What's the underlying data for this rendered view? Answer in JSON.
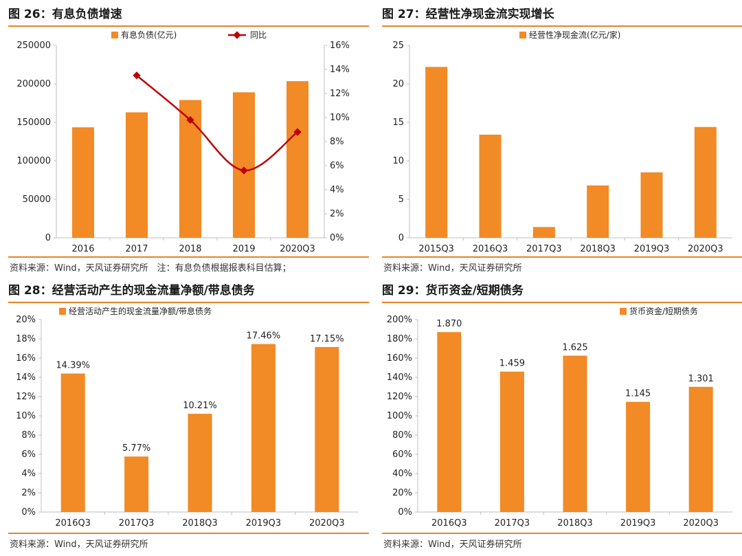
{
  "colors": {
    "bar": "#f28a25",
    "line": "#c00000",
    "rule": "#e8822a"
  },
  "panels": [
    {
      "title": "图 26：有息负债增速",
      "source": "资料来源：Wind，天风证券研究所　注：有息负债根据报表科目估算；"
    },
    {
      "title": "图 27：经营性净现金流实现增长",
      "source": "资料来源：Wind，天风证券研究所"
    },
    {
      "title": "图 28：经营活动产生的现金流量净额/带息债务",
      "source": "资料来源：Wind，天风证券研究所"
    },
    {
      "title": "图 29：货币资金/短期债务",
      "source": "资料来源：Wind，天风证券研究所"
    }
  ],
  "chart_data": [
    {
      "type": "bar+line",
      "categories": [
        "2016",
        "2017",
        "2018",
        "2019",
        "2020Q3"
      ],
      "series": [
        {
          "name": "有息负债(亿元)",
          "kind": "bar",
          "axis": "left",
          "values": [
            143500,
            163000,
            179000,
            189000,
            203500
          ]
        },
        {
          "name": "同比",
          "kind": "line",
          "axis": "right",
          "values": [
            null,
            13.5,
            9.8,
            5.6,
            8.8
          ]
        }
      ],
      "ylim": [
        0,
        250000
      ],
      "yticks": [
        "0",
        "50000",
        "100000",
        "150000",
        "200000",
        "250000"
      ],
      "y2lim": [
        0,
        16
      ],
      "y2ticks": [
        "0%",
        "2%",
        "4%",
        "6%",
        "8%",
        "10%",
        "12%",
        "14%",
        "16%"
      ],
      "legend": "top"
    },
    {
      "type": "bar",
      "categories": [
        "2015Q3",
        "2016Q3",
        "2017Q3",
        "2018Q3",
        "2019Q3",
        "2020Q3"
      ],
      "series": [
        {
          "name": "经营性净现金流(亿元/家)",
          "values": [
            22.2,
            13.4,
            1.4,
            6.8,
            8.5,
            14.4
          ]
        }
      ],
      "ylim": [
        0,
        25
      ],
      "yticks": [
        "0",
        "5",
        "10",
        "15",
        "20",
        "25"
      ],
      "legend": "top"
    },
    {
      "type": "bar",
      "categories": [
        "2016Q3",
        "2017Q3",
        "2018Q3",
        "2019Q3",
        "2020Q3"
      ],
      "series": [
        {
          "name": "经营活动产生的现金流量净额/带息债务",
          "values": [
            14.39,
            5.77,
            10.21,
            17.46,
            17.15
          ]
        }
      ],
      "data_labels": [
        "14.39%",
        "5.77%",
        "10.21%",
        "17.46%",
        "17.15%"
      ],
      "ylim": [
        0,
        20
      ],
      "yticks": [
        "0%",
        "2%",
        "4%",
        "6%",
        "8%",
        "10%",
        "12%",
        "14%",
        "16%",
        "18%",
        "20%"
      ],
      "legend": "top-left"
    },
    {
      "type": "bar",
      "categories": [
        "2016Q3",
        "2017Q3",
        "2018Q3",
        "2019Q3",
        "2020Q3"
      ],
      "series": [
        {
          "name": "货币资金/短期债务",
          "values": [
            187.0,
            145.9,
            162.5,
            114.5,
            130.1
          ]
        }
      ],
      "data_labels": [
        "1.870",
        "1.459",
        "1.625",
        "1.145",
        "1.301"
      ],
      "ylim": [
        0,
        200
      ],
      "yticks": [
        "0%",
        "20%",
        "40%",
        "60%",
        "80%",
        "100%",
        "120%",
        "140%",
        "160%",
        "180%",
        "200%"
      ],
      "legend": "top-right"
    }
  ]
}
